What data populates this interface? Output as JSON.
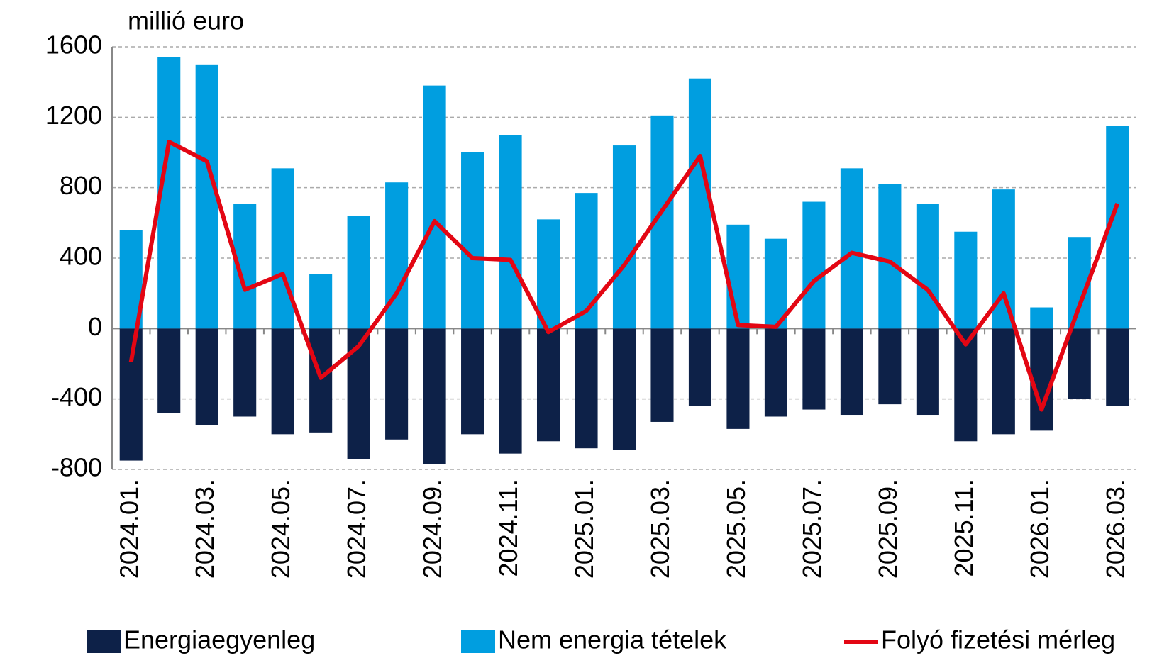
{
  "chart_data": {
    "type": "bar-line",
    "y_label": "millió euro",
    "categories": [
      "2024.01.",
      null,
      "2024.03.",
      null,
      "2024.05.",
      null,
      "2024.07.",
      null,
      "2024.09.",
      null,
      "2024.11.",
      null,
      "2025.01.",
      null,
      "2025.03.",
      null,
      "2025.05.",
      null,
      "2025.07.",
      null,
      "2025.09.",
      null,
      "2025.11.",
      null,
      "2026.01.",
      null,
      "2026.03."
    ],
    "series": [
      {
        "name": "Energiaegyenleg",
        "type": "bar",
        "color": "#0d2148",
        "values": [
          -750,
          -480,
          -550,
          -500,
          -600,
          -590,
          -740,
          -630,
          -770,
          -600,
          -710,
          -640,
          -680,
          -690,
          -530,
          -440,
          -570,
          -500,
          -460,
          -490,
          -430,
          -490,
          -640,
          -600,
          -580,
          -400,
          -440
        ]
      },
      {
        "name": "Nem energia tételek",
        "type": "bar",
        "color": "#009ee0",
        "values": [
          560,
          1540,
          1500,
          710,
          910,
          310,
          640,
          830,
          1380,
          1000,
          1100,
          620,
          770,
          1040,
          1210,
          1420,
          590,
          510,
          720,
          910,
          820,
          710,
          550,
          790,
          120,
          520,
          1150
        ]
      },
      {
        "name": "Folyó fizetési mérleg",
        "type": "line",
        "color": "#e30613",
        "values": [
          -190,
          1060,
          950,
          220,
          310,
          -280,
          -100,
          200,
          610,
          400,
          390,
          -20,
          100,
          360,
          670,
          980,
          20,
          10,
          270,
          430,
          380,
          220,
          -90,
          200,
          -460,
          130,
          710
        ]
      }
    ],
    "ylim": [
      -800,
      1600
    ],
    "yticks": [
      -800,
      -400,
      0,
      400,
      800,
      1200,
      1600
    ],
    "grid": true,
    "legend": "bottom"
  }
}
